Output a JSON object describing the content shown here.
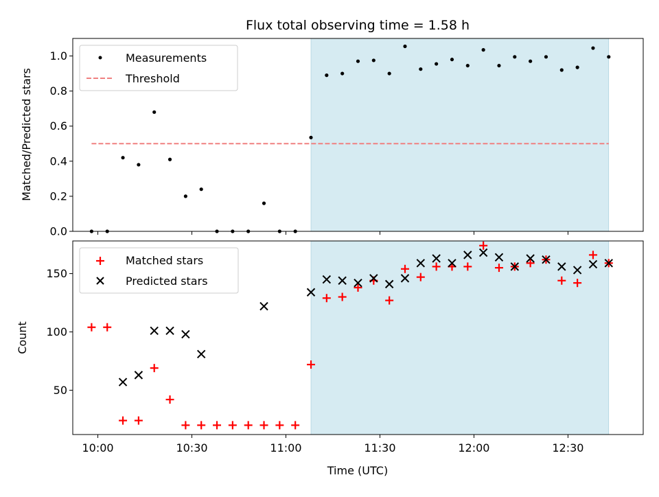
{
  "chart_data": [
    {
      "type": "scatter",
      "title": "Flux total observing time = 1.58 h",
      "ylabel": "Matched/Predicted stars",
      "xlabel": "",
      "xlim": [
        "09:52",
        "12:54"
      ],
      "ylim": [
        0,
        1.1
      ],
      "yticks": [
        0.0,
        0.2,
        0.4,
        0.6,
        0.8,
        1.0
      ],
      "ytick_labels": [
        "0.0",
        "0.2",
        "0.4",
        "0.6",
        "0.8",
        "1.0"
      ],
      "legend_placement": "upper-left",
      "shaded_interval": {
        "start": "11:08",
        "end": "12:43",
        "color": "#add8e6"
      },
      "series": [
        {
          "name": "Measurements",
          "marker": "dot",
          "color": "#000000",
          "x": [
            "09:58",
            "10:03",
            "10:08",
            "10:13",
            "10:18",
            "10:23",
            "10:28",
            "10:33",
            "10:38",
            "10:43",
            "10:48",
            "10:53",
            "10:58",
            "11:03",
            "11:08",
            "11:13",
            "11:18",
            "11:23",
            "11:28",
            "11:33",
            "11:38",
            "11:43",
            "11:48",
            "11:53",
            "11:58",
            "12:03",
            "12:08",
            "12:13",
            "12:18",
            "12:23",
            "12:28",
            "12:33",
            "12:38",
            "12:43"
          ],
          "y": [
            0.0,
            0.0,
            0.42,
            0.38,
            0.68,
            0.41,
            0.2,
            0.24,
            0.0,
            0.0,
            0.0,
            0.16,
            0.0,
            0.0,
            0.535,
            0.89,
            0.9,
            0.97,
            0.975,
            0.9,
            1.055,
            0.925,
            0.955,
            0.98,
            0.945,
            1.035,
            0.945,
            0.995,
            0.97,
            0.995,
            0.92,
            0.935,
            1.045,
            0.995
          ]
        },
        {
          "name": "Threshold",
          "style": "dashed",
          "color": "#f08080",
          "x": [
            "09:58",
            "12:43"
          ],
          "y": [
            0.5,
            0.5
          ]
        }
      ]
    },
    {
      "type": "scatter",
      "title": "",
      "ylabel": "Count",
      "xlabel": "Time (UTC)",
      "xlim": [
        "09:52",
        "12:54"
      ],
      "ylim": [
        12,
        178
      ],
      "yticks": [
        50,
        100,
        150
      ],
      "ytick_labels": [
        "50",
        "100",
        "150"
      ],
      "xticks": [
        "10:00",
        "10:30",
        "11:00",
        "11:30",
        "12:00",
        "12:30"
      ],
      "xtick_labels": [
        "10:00",
        "10:30",
        "11:00",
        "11:30",
        "12:00",
        "12:30"
      ],
      "legend_placement": "upper-left",
      "shaded_interval": {
        "start": "11:08",
        "end": "12:43",
        "color": "#add8e6"
      },
      "series": [
        {
          "name": "Matched stars",
          "marker": "plus",
          "color": "#ff0000",
          "x": [
            "09:58",
            "10:03",
            "10:08",
            "10:13",
            "10:18",
            "10:23",
            "10:28",
            "10:33",
            "10:38",
            "10:43",
            "10:48",
            "10:53",
            "10:58",
            "11:03",
            "11:08",
            "11:13",
            "11:18",
            "11:23",
            "11:28",
            "11:33",
            "11:38",
            "11:43",
            "11:48",
            "11:53",
            "11:58",
            "12:03",
            "12:08",
            "12:13",
            "12:18",
            "12:23",
            "12:28",
            "12:33",
            "12:38",
            "12:43"
          ],
          "y": [
            104,
            104,
            24,
            24,
            69,
            42,
            20,
            20,
            20,
            20,
            20,
            20,
            20,
            20,
            72,
            129,
            130,
            138,
            144,
            127,
            154,
            147,
            156,
            156,
            156,
            174,
            155,
            156,
            159,
            162,
            144,
            142,
            166,
            159
          ]
        },
        {
          "name": "Predicted stars",
          "marker": "x",
          "color": "#000000",
          "x": [
            "10:08",
            "10:13",
            "10:18",
            "10:23",
            "10:28",
            "10:33",
            "10:53",
            "11:08",
            "11:13",
            "11:18",
            "11:23",
            "11:28",
            "11:33",
            "11:38",
            "11:43",
            "11:48",
            "11:53",
            "11:58",
            "12:03",
            "12:08",
            "12:13",
            "12:18",
            "12:23",
            "12:28",
            "12:33",
            "12:38",
            "12:43"
          ],
          "y": [
            57,
            63,
            101,
            101,
            98,
            81,
            122,
            134,
            145,
            144,
            142,
            146,
            141,
            146,
            159,
            163,
            159,
            166,
            168,
            164,
            156,
            163,
            162,
            156,
            153,
            158,
            159
          ]
        }
      ]
    }
  ]
}
